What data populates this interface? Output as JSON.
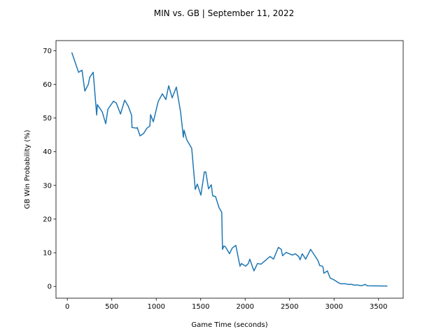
{
  "chart_data": {
    "type": "line",
    "title": "MIN vs. GB | September 11, 2022",
    "xlabel": "Game Time (seconds)",
    "ylabel": "GB Win Probability (%)",
    "color": "#1f77b4",
    "x": [
      50,
      126,
      165,
      197,
      236,
      252,
      291,
      330,
      338,
      393,
      432,
      456,
      519,
      550,
      598,
      645,
      684,
      723,
      727,
      778,
      786,
      818,
      857,
      896,
      928,
      936,
      967,
      1022,
      1069,
      1108,
      1140,
      1179,
      1226,
      1274,
      1305,
      1313,
      1344,
      1399,
      1439,
      1462,
      1502,
      1541,
      1557,
      1588,
      1619,
      1635,
      1667,
      1706,
      1737,
      1745,
      1761,
      1777,
      1824,
      1855,
      1895,
      1942,
      1958,
      2005,
      2036,
      2052,
      2075,
      2099,
      2138,
      2178,
      2280,
      2319,
      2374,
      2406,
      2421,
      2461,
      2531,
      2563,
      2602,
      2618,
      2642,
      2681,
      2736,
      2799,
      2822,
      2838,
      2869,
      2877,
      2885,
      2925,
      2956,
      3003,
      3042,
      3074,
      3129,
      3153,
      3200,
      3223,
      3270,
      3302,
      3333,
      3349,
      3373,
      3600
    ],
    "values": [
      69.5,
      63.6,
      64.2,
      58,
      60,
      62.1,
      63.6,
      50.9,
      54,
      51.8,
      48.3,
      52.6,
      55,
      54.5,
      51.2,
      55.3,
      53.6,
      50.8,
      47.2,
      47,
      47.2,
      44.7,
      45.4,
      47,
      47.6,
      51,
      48.9,
      54.9,
      57.2,
      55.5,
      59.6,
      56,
      59.2,
      51.8,
      44.3,
      46.4,
      43.5,
      41,
      28.8,
      30.4,
      27.1,
      34,
      34,
      29,
      30.2,
      26.9,
      26.7,
      23.4,
      22,
      11,
      12,
      11.8,
      9.7,
      11.4,
      12.2,
      6,
      6.8,
      6,
      6.8,
      8.1,
      6.4,
      4.6,
      6.8,
      6.6,
      8.9,
      8.1,
      11.6,
      11,
      9.1,
      10.1,
      9.3,
      9.7,
      8.9,
      7.9,
      9.7,
      8.1,
      11,
      8.5,
      7.5,
      6.2,
      6,
      5.6,
      3.9,
      4.6,
      2.5,
      1.9,
      1.2,
      0.8,
      0.8,
      0.6,
      0.6,
      0.4,
      0.4,
      0.2,
      0.4,
      0.6,
      0.2,
      0.1
    ],
    "xlim": [
      -127.5,
      3777.5
    ],
    "xticks": [
      0,
      500,
      1000,
      1500,
      2000,
      2500,
      3000,
      3500
    ],
    "ylim": [
      -3.5,
      73
    ],
    "yticks": [
      0,
      10,
      20,
      30,
      40,
      50,
      60,
      70
    ],
    "grid": false
  }
}
